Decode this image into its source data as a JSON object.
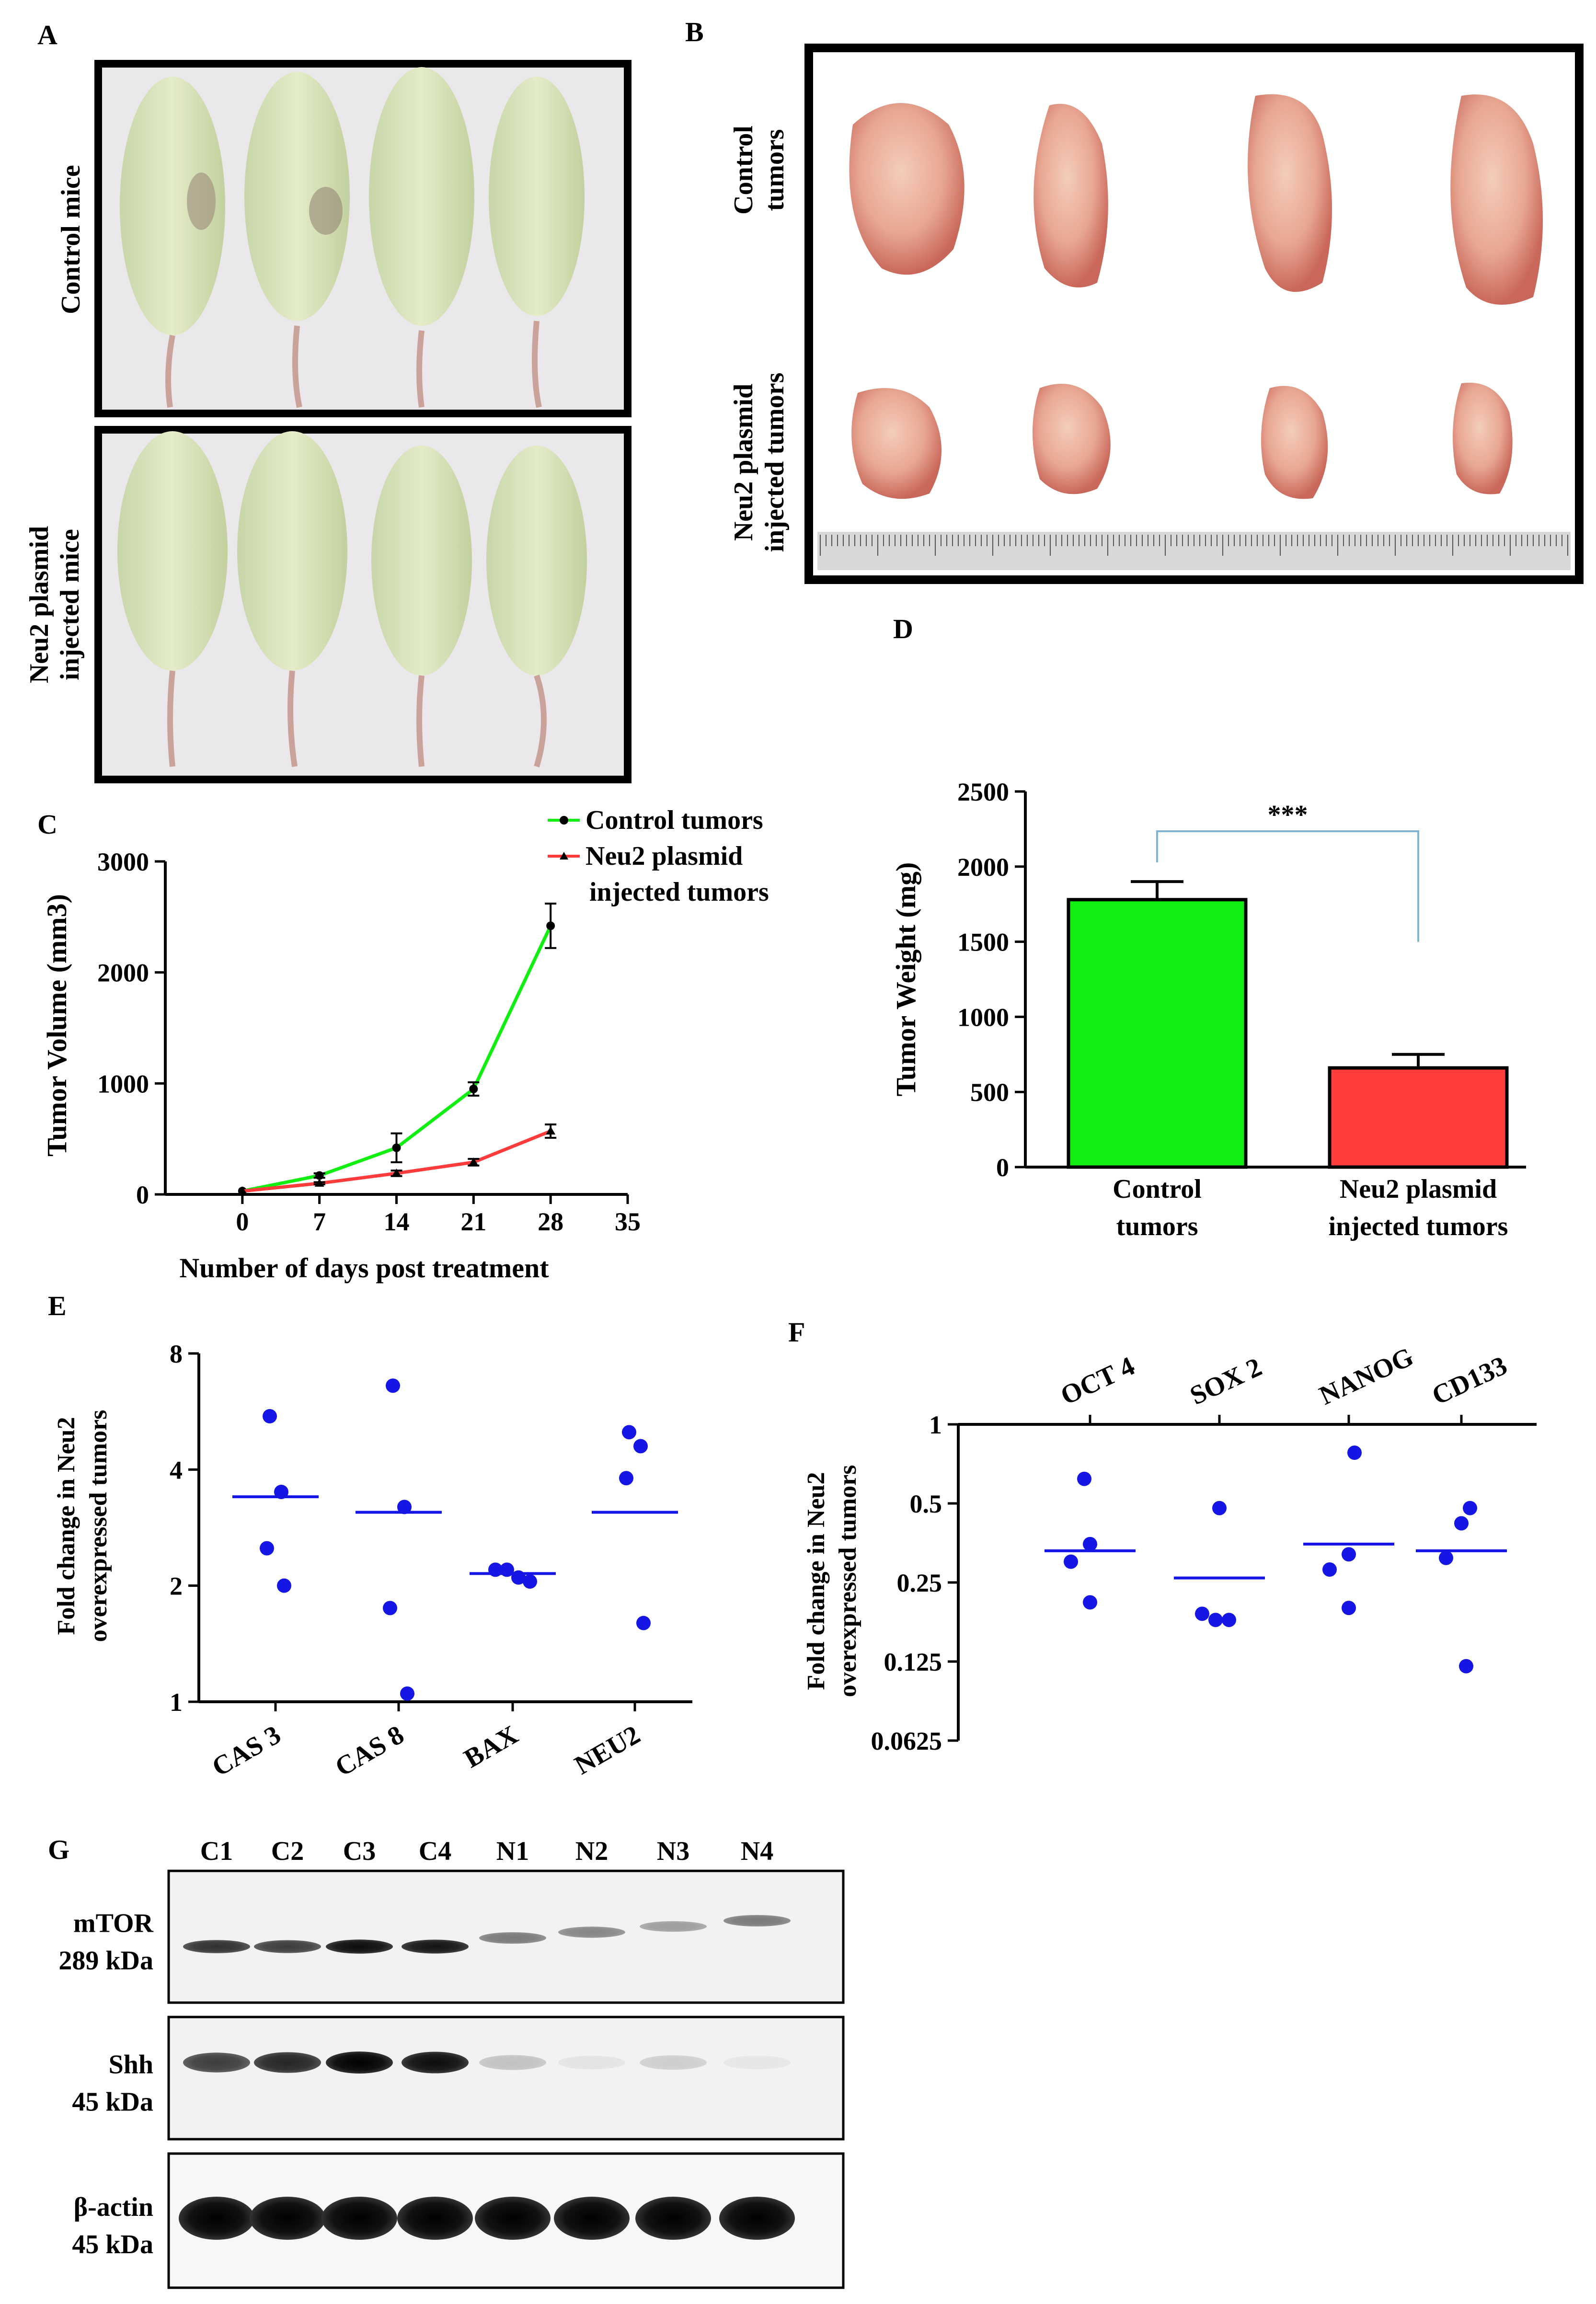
{
  "panels": {
    "A": {
      "letter": "A",
      "top_label": "Control mice",
      "bottom_label_line1": "Neu2 plasmid",
      "bottom_label_line2": "injected mice"
    },
    "B": {
      "letter": "B",
      "top_label_line1": "Control",
      "top_label_line2": "tumors",
      "bottom_label_line1": "Neu2 plasmid",
      "bottom_label_line2": "injected tumors"
    },
    "G": {
      "letter": "G",
      "lanes": [
        "C1",
        "C2",
        "C3",
        "C4",
        "N1",
        "N2",
        "N3",
        "N4"
      ],
      "blots": [
        {
          "name": "mTOR",
          "size": "289 kDa",
          "intensity": [
            0.8,
            0.75,
            0.95,
            0.92,
            0.5,
            0.45,
            0.35,
            0.5
          ]
        },
        {
          "name": "Shh",
          "size": "45 kDa",
          "intensity": [
            0.75,
            0.85,
            1.0,
            0.95,
            0.2,
            0.06,
            0.15,
            0.05
          ]
        },
        {
          "name": "β-actin",
          "size": "45 kDa",
          "intensity": [
            1,
            1,
            1,
            1,
            1,
            1,
            1,
            1
          ]
        }
      ]
    }
  },
  "colors": {
    "control": "#11ee11",
    "neu2": "#ff3b3b",
    "dot": "#1515e6",
    "connector": "#7fb4d6"
  },
  "chart_data": [
    {
      "id": "C",
      "letter": "C",
      "type": "line",
      "xlabel": "Number of days post treatment",
      "ylabel": "Tumor Volume (mm3)",
      "x": [
        0,
        7,
        14,
        21,
        28
      ],
      "xticks": [
        0,
        7,
        14,
        21,
        28,
        35
      ],
      "yticks": [
        0,
        1000,
        2000,
        3000
      ],
      "xlim": [
        -7,
        35
      ],
      "ylim": [
        0,
        3000
      ],
      "series": [
        {
          "name": "Control tumors",
          "values": [
            30,
            170,
            420,
            950,
            2420
          ],
          "errors": [
            0,
            20,
            130,
            60,
            200
          ]
        },
        {
          "name": "Neu2 plasmid injected tumors",
          "values": [
            30,
            100,
            190,
            290,
            570
          ],
          "errors": [
            0,
            10,
            25,
            30,
            60
          ]
        }
      ],
      "legend": [
        "Control tumors",
        "Neu2 plasmid",
        "injected tumors"
      ]
    },
    {
      "id": "D",
      "letter": "D",
      "type": "bar",
      "ylabel": "Tumor Weight (mg)",
      "categories": [
        "Control tumors",
        "Neu2 plasmid injected tumors"
      ],
      "category_lines": [
        [
          "Control",
          "tumors"
        ],
        [
          "Neu2 plasmid",
          "injected tumors"
        ]
      ],
      "values": [
        1780,
        660
      ],
      "errors": [
        120,
        90
      ],
      "ylim": [
        0,
        2500
      ],
      "yticks": [
        0,
        500,
        1000,
        1500,
        2000,
        2500
      ],
      "annotation": "***"
    },
    {
      "id": "E",
      "letter": "E",
      "type": "scatter",
      "ylabel": "Fold change in Neu2 overexpressed tumors",
      "ylabel_lines": [
        "Fold change in Neu2",
        "overexpressed tumors"
      ],
      "categories": [
        "CAS 3",
        "CAS 8",
        "BAX",
        "NEU2"
      ],
      "points": [
        [
          5.5,
          3.5,
          2.5,
          2.0
        ],
        [
          6.6,
          3.2,
          1.75,
          1.05
        ],
        [
          2.2,
          2.2,
          2.1,
          2.05
        ],
        [
          5.0,
          4.6,
          3.8,
          1.6
        ]
      ],
      "means": [
        3.4,
        3.1,
        2.15,
        3.1
      ],
      "yscale": "log2",
      "ylim": [
        1,
        8
      ],
      "yticks": [
        1,
        2,
        4,
        8
      ]
    },
    {
      "id": "F",
      "letter": "F",
      "type": "scatter",
      "ylabel": "Fold change in Neu2 overexpressed tumors",
      "ylabel_lines": [
        "Fold change in Neu2",
        "overexpressed tumors"
      ],
      "categories": [
        "OCT 4",
        "SOX 2",
        "NANOG",
        "CD133"
      ],
      "points": [
        [
          0.62,
          0.35,
          0.3,
          0.21
        ],
        [
          0.48,
          0.19,
          0.18,
          0.18
        ],
        [
          0.78,
          0.32,
          0.28,
          0.2
        ],
        [
          0.48,
          0.42,
          0.31,
          0.12
        ]
      ],
      "means": [
        0.33,
        0.26,
        0.35,
        0.33
      ],
      "yscale": "log2",
      "ylim": [
        0.0625,
        1
      ],
      "yticks": [
        0.0625,
        0.125,
        0.25,
        0.5,
        1
      ],
      "ytick_labels": [
        "0.0625",
        "0.125",
        "0.25",
        "0.5",
        "1"
      ]
    }
  ]
}
